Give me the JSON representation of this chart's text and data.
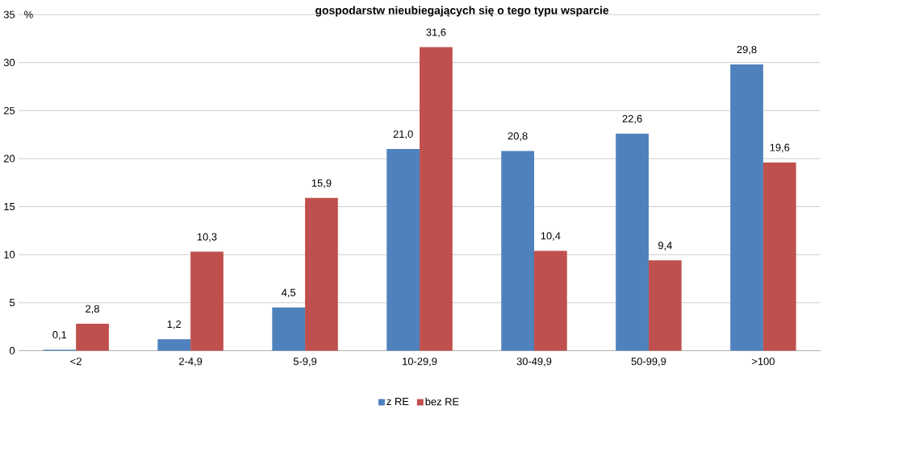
{
  "chart_data": {
    "type": "bar",
    "title": "gospodarstw nieubiegających się o tego typu wsparcie",
    "ylabel": "%",
    "categories": [
      "<2",
      "2-4,9",
      "5-9,9",
      "10-29,9",
      "30-49,9",
      "50-99,9",
      ">100"
    ],
    "series": [
      {
        "name": "z RE",
        "color": "#4f81bd",
        "values": [
          0.1,
          1.2,
          4.5,
          21.0,
          20.8,
          22.6,
          29.8
        ],
        "value_labels": [
          "0,1",
          "1,2",
          "4,5",
          "21,0",
          "20,8",
          "22,6",
          "29,8"
        ]
      },
      {
        "name": "bez RE",
        "color": "#c0504d",
        "values": [
          2.8,
          10.3,
          15.9,
          31.6,
          10.4,
          9.4,
          19.6
        ],
        "value_labels": [
          "2,8",
          "10,3",
          "15,9",
          "31,6",
          "10,4",
          "9,4",
          "19,6"
        ]
      }
    ],
    "ylim": [
      0,
      35
    ],
    "yticks": [
      0,
      5,
      10,
      15,
      20,
      25,
      30,
      35
    ],
    "grid": "y",
    "legend": "bottom"
  }
}
